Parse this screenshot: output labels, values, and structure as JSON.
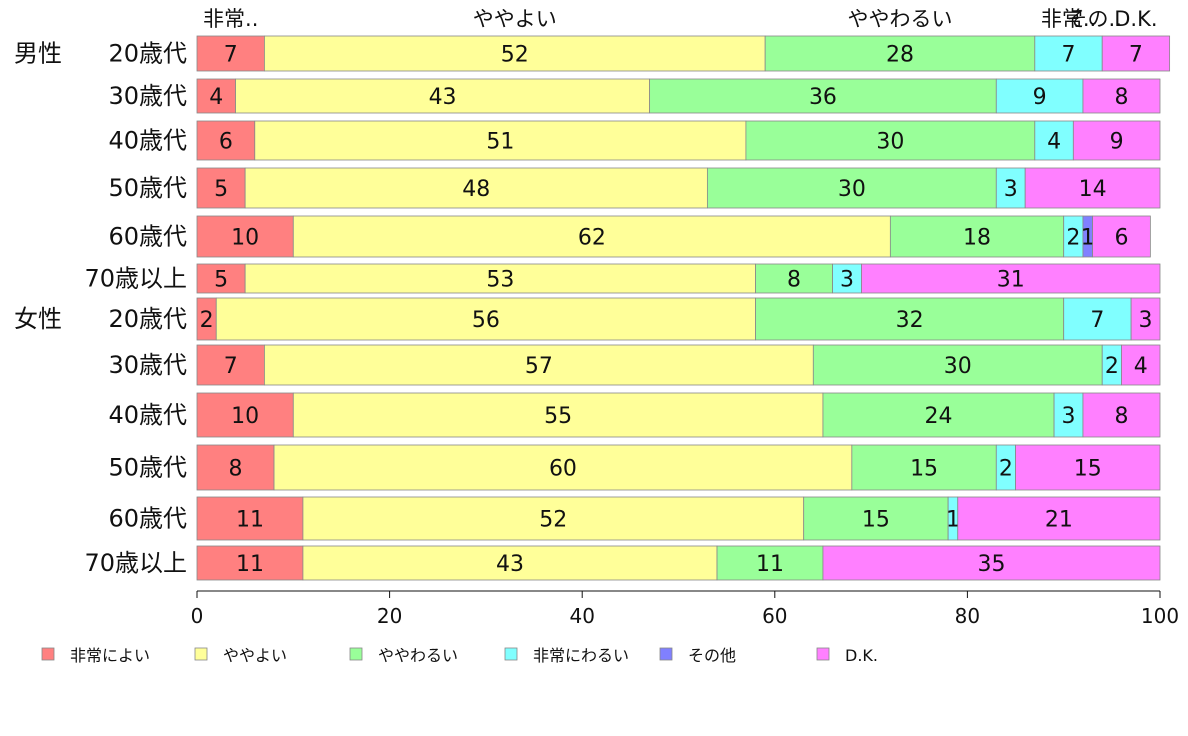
{
  "chart_data": {
    "type": "bar",
    "orientation": "horizontal",
    "stacked": true,
    "categories": [
      {
        "group": "男性",
        "label": "20歳代"
      },
      {
        "group": "",
        "label": "30歳代"
      },
      {
        "group": "",
        "label": "40歳代"
      },
      {
        "group": "",
        "label": "50歳代"
      },
      {
        "group": "",
        "label": "60歳代"
      },
      {
        "group": "",
        "label": "70歳以上"
      },
      {
        "group": "女性",
        "label": "20歳代"
      },
      {
        "group": "",
        "label": "30歳代"
      },
      {
        "group": "",
        "label": "40歳代"
      },
      {
        "group": "",
        "label": "50歳代"
      },
      {
        "group": "",
        "label": "60歳代"
      },
      {
        "group": "",
        "label": "70歳以上"
      }
    ],
    "series": [
      {
        "name": "非常によい",
        "color": "#ff8080",
        "values": [
          7,
          4,
          6,
          5,
          10,
          5,
          2,
          7,
          10,
          8,
          11,
          11
        ]
      },
      {
        "name": "ややよい",
        "color": "#ffff99",
        "values": [
          52,
          43,
          51,
          48,
          62,
          53,
          56,
          57,
          55,
          60,
          52,
          43
        ]
      },
      {
        "name": "ややわるい",
        "color": "#99ff99",
        "values": [
          28,
          36,
          30,
          30,
          18,
          8,
          32,
          30,
          24,
          15,
          15,
          11
        ]
      },
      {
        "name": "非常にわるい",
        "color": "#80ffff",
        "values": [
          7,
          9,
          4,
          3,
          2,
          3,
          7,
          2,
          3,
          2,
          1,
          0
        ]
      },
      {
        "name": "その他",
        "color": "#8080ff",
        "values": [
          0,
          0,
          0,
          0,
          1,
          0,
          0,
          0,
          0,
          0,
          0,
          0
        ]
      },
      {
        "name": "D.K.",
        "color": "#ff80ff",
        "values": [
          7,
          8,
          9,
          14,
          6,
          31,
          3,
          4,
          8,
          15,
          21,
          35
        ]
      }
    ],
    "top_labels": [
      "非常..",
      "ややよい",
      "ややわるい",
      "非常..",
      "その..",
      "D.K."
    ],
    "xlim": [
      0,
      100
    ],
    "xticks": [
      0,
      20,
      40,
      60,
      80,
      100
    ],
    "grid": false,
    "legend_position": "bottom"
  }
}
